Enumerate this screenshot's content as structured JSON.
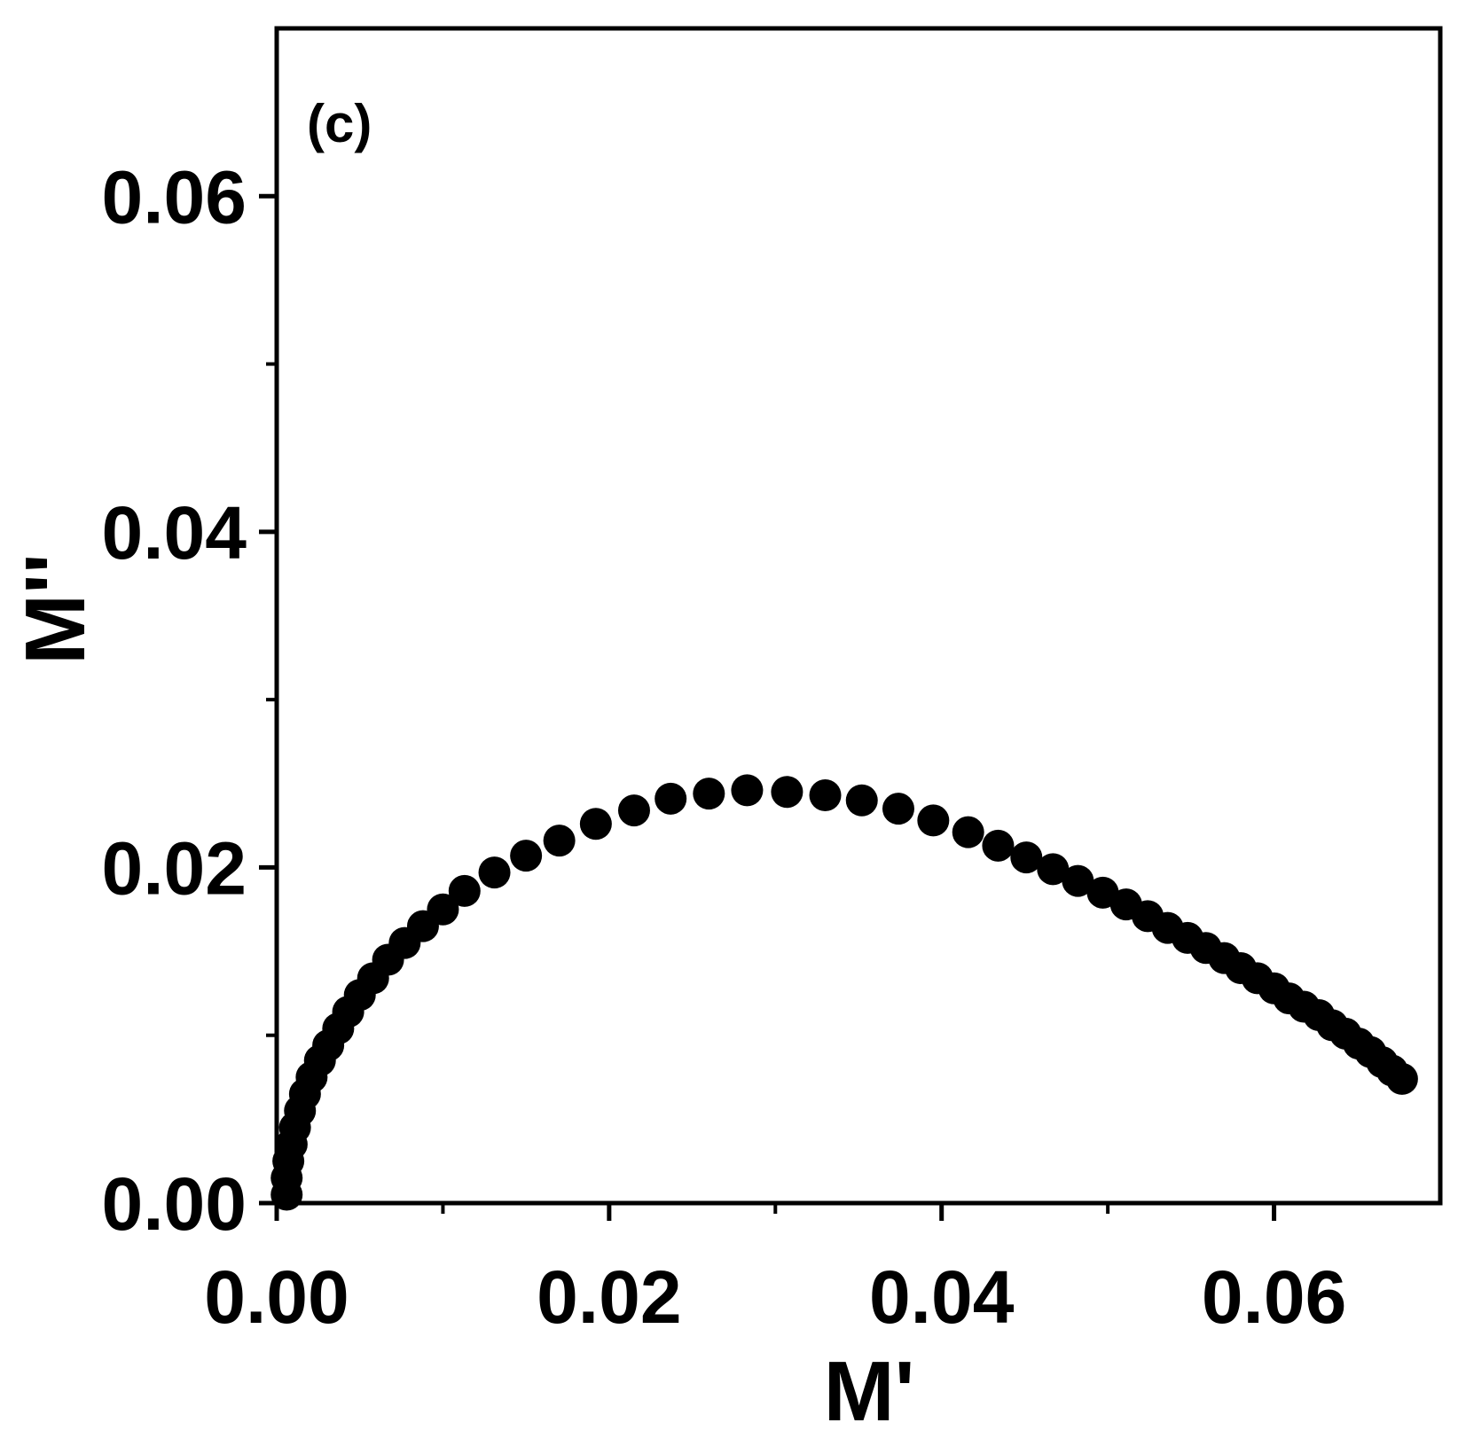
{
  "chart_data": {
    "type": "scatter",
    "panel_label": "(c)",
    "xlabel": "M'",
    "ylabel": "M''",
    "xlim": [
      0,
      0.07
    ],
    "ylim": [
      0,
      0.07
    ],
    "x_ticks": [
      0.0,
      0.02,
      0.04,
      0.06
    ],
    "x_tick_labels": [
      "0.00",
      "0.02",
      "0.04",
      "0.06"
    ],
    "y_ticks": [
      0.0,
      0.02,
      0.04,
      0.06
    ],
    "y_tick_labels": [
      "0.00",
      "0.02",
      "0.04",
      "0.06"
    ],
    "x_minor_ticks": [
      0.01,
      0.03,
      0.05
    ],
    "y_minor_ticks": [
      0.01,
      0.03,
      0.05
    ],
    "marker_color": "#000000",
    "points": [
      [
        0.0006,
        0.0005
      ],
      [
        0.0006,
        0.0015
      ],
      [
        0.0007,
        0.0025
      ],
      [
        0.0009,
        0.0035
      ],
      [
        0.0011,
        0.0045
      ],
      [
        0.0014,
        0.0055
      ],
      [
        0.0017,
        0.0065
      ],
      [
        0.0021,
        0.0075
      ],
      [
        0.0026,
        0.0085
      ],
      [
        0.0031,
        0.0094
      ],
      [
        0.0037,
        0.0104
      ],
      [
        0.0043,
        0.0114
      ],
      [
        0.005,
        0.0124
      ],
      [
        0.0058,
        0.0134
      ],
      [
        0.0067,
        0.0145
      ],
      [
        0.0077,
        0.0155
      ],
      [
        0.0088,
        0.0165
      ],
      [
        0.01,
        0.0175
      ],
      [
        0.0113,
        0.0186
      ],
      [
        0.0131,
        0.0197
      ],
      [
        0.015,
        0.0207
      ],
      [
        0.017,
        0.0216
      ],
      [
        0.0192,
        0.0226
      ],
      [
        0.0215,
        0.0234
      ],
      [
        0.0237,
        0.0241
      ],
      [
        0.026,
        0.0244
      ],
      [
        0.0283,
        0.0246
      ],
      [
        0.0307,
        0.0245
      ],
      [
        0.033,
        0.0243
      ],
      [
        0.0352,
        0.024
      ],
      [
        0.0374,
        0.0235
      ],
      [
        0.0395,
        0.0228
      ],
      [
        0.0416,
        0.0221
      ],
      [
        0.0434,
        0.0213
      ],
      [
        0.0451,
        0.0206
      ],
      [
        0.0467,
        0.0199
      ],
      [
        0.0482,
        0.0192
      ],
      [
        0.0497,
        0.0185
      ],
      [
        0.0511,
        0.0178
      ],
      [
        0.0524,
        0.0171
      ],
      [
        0.0536,
        0.0164
      ],
      [
        0.0548,
        0.0158
      ],
      [
        0.0559,
        0.0152
      ],
      [
        0.057,
        0.0146
      ],
      [
        0.058,
        0.014
      ],
      [
        0.059,
        0.0134
      ],
      [
        0.06,
        0.0128
      ],
      [
        0.0609,
        0.0122
      ],
      [
        0.0618,
        0.0117
      ],
      [
        0.0627,
        0.0112
      ],
      [
        0.0635,
        0.0106
      ],
      [
        0.0643,
        0.0101
      ],
      [
        0.0651,
        0.0095
      ],
      [
        0.0658,
        0.009
      ],
      [
        0.0665,
        0.0084
      ],
      [
        0.0671,
        0.0079
      ],
      [
        0.0677,
        0.0074
      ]
    ]
  }
}
